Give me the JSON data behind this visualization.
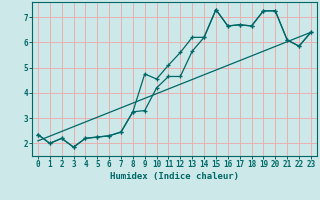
{
  "xlabel": "Humidex (Indice chaleur)",
  "ylabel": "",
  "bg_color": "#cce8e8",
  "grid_color": "#e8b0b0",
  "line_color": "#006868",
  "xlim": [
    -0.5,
    23.5
  ],
  "ylim": [
    1.5,
    7.6
  ],
  "xticks": [
    0,
    1,
    2,
    3,
    4,
    5,
    6,
    7,
    8,
    9,
    10,
    11,
    12,
    13,
    14,
    15,
    16,
    17,
    18,
    19,
    20,
    21,
    22,
    23
  ],
  "yticks": [
    2,
    3,
    4,
    5,
    6,
    7
  ],
  "line1_x": [
    0,
    1,
    2,
    3,
    4,
    5,
    6,
    7,
    8,
    9,
    10,
    11,
    12,
    13,
    14,
    15,
    16,
    17,
    18,
    19,
    20,
    21,
    22,
    23
  ],
  "line1_y": [
    2.35,
    2.0,
    2.2,
    1.85,
    2.2,
    2.25,
    2.3,
    2.45,
    3.25,
    3.3,
    4.2,
    4.65,
    4.65,
    5.65,
    6.2,
    7.3,
    6.65,
    6.7,
    6.65,
    7.25,
    7.25,
    6.1,
    5.85,
    6.4
  ],
  "line2_x": [
    0,
    1,
    2,
    3,
    4,
    5,
    6,
    7,
    8,
    9,
    10,
    11,
    12,
    13,
    14,
    15,
    16,
    17,
    18,
    19,
    20,
    21,
    22,
    23
  ],
  "line2_y": [
    2.35,
    2.0,
    2.2,
    1.85,
    2.2,
    2.25,
    2.3,
    2.45,
    3.25,
    4.75,
    4.55,
    5.1,
    5.6,
    6.2,
    6.2,
    7.3,
    6.65,
    6.7,
    6.65,
    7.25,
    7.25,
    6.1,
    5.85,
    6.4
  ],
  "line3_x": [
    0,
    23
  ],
  "line3_y": [
    2.1,
    6.4
  ]
}
